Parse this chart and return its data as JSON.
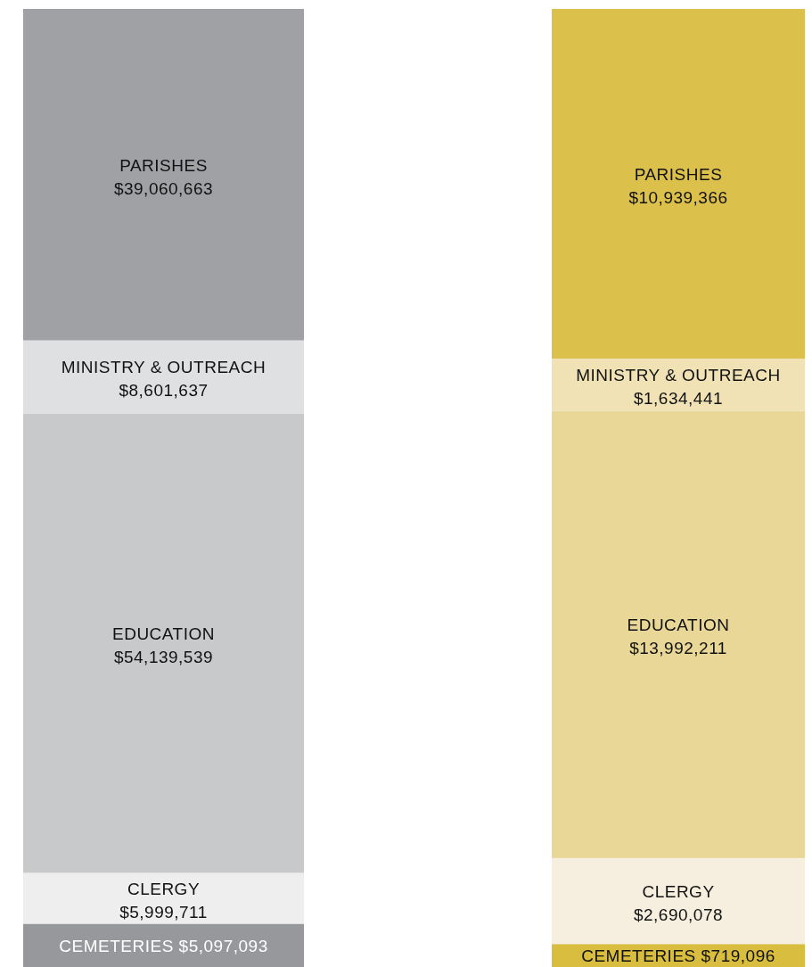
{
  "chart_data": [
    {
      "type": "bar",
      "stacked": true,
      "categories": [
        null
      ],
      "series": [
        {
          "name": "CEMETERIES",
          "color": "#97989c",
          "values": [
            5097093
          ],
          "value_labels": [
            "$5,097,093"
          ]
        },
        {
          "name": "CLERGY",
          "color": "#eeeeee",
          "values": [
            5999711
          ],
          "value_labels": [
            "$5,999,711"
          ]
        },
        {
          "name": "EDUCATION",
          "color": "#c8c9cb",
          "values": [
            54139539
          ],
          "value_labels": [
            "$54,139,539"
          ]
        },
        {
          "name": "MINISTRY & OUTREACH",
          "color": "#dfe0e2",
          "values": [
            8601637
          ],
          "value_labels": [
            "$8,601,637"
          ]
        },
        {
          "name": "PARISHES",
          "color": "#a0a1a5",
          "values": [
            39060663
          ],
          "value_labels": [
            "$39,060,663"
          ]
        }
      ]
    },
    {
      "type": "bar",
      "stacked": true,
      "categories": [
        null
      ],
      "series": [
        {
          "name": "CEMETERIES",
          "color": "#d8bd3f",
          "values": [
            719096
          ],
          "value_labels": [
            "$719,096"
          ]
        },
        {
          "name": "CLERGY",
          "color": "#f6efdf",
          "values": [
            2690078
          ],
          "value_labels": [
            "$2,690,078"
          ]
        },
        {
          "name": "EDUCATION",
          "color": "#e8d797",
          "values": [
            13992211
          ],
          "value_labels": [
            "$13,992,211"
          ]
        },
        {
          "name": "MINISTRY & OUTREACH",
          "color": "#f0e2b4",
          "values": [
            1634441
          ],
          "value_labels": [
            "$1,634,441"
          ]
        },
        {
          "name": "PARISHES",
          "color": "#dcc04c",
          "values": [
            10939366
          ],
          "value_labels": [
            "$10,939,366"
          ]
        }
      ]
    }
  ]
}
